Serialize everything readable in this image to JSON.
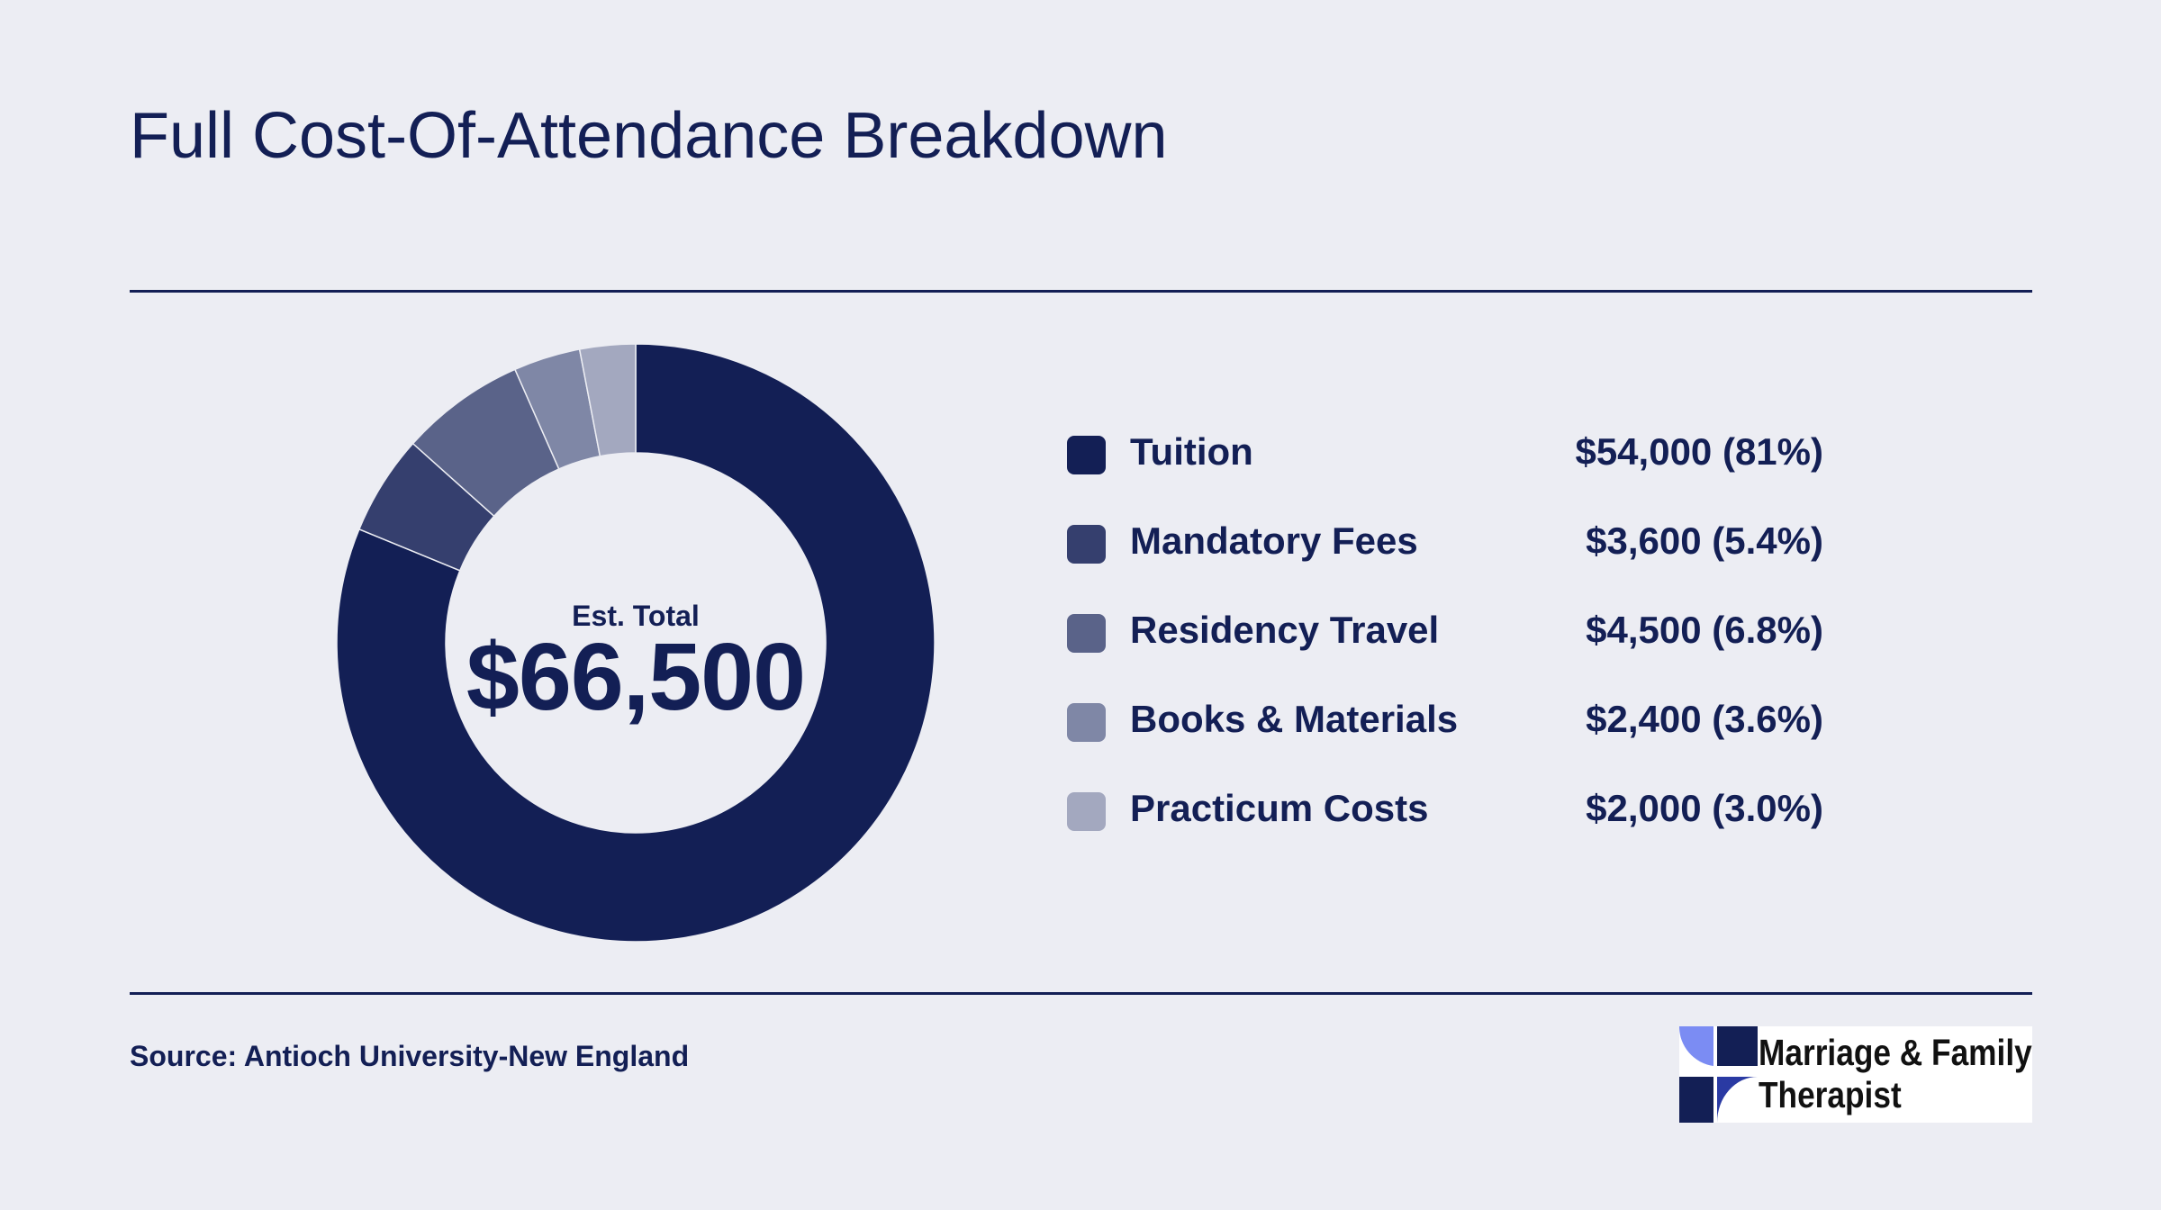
{
  "chart_data": {
    "type": "pie",
    "title": "Full Cost-Of-Attendance Breakdown",
    "center_label": "Est. Total",
    "center_value": "$66,500",
    "start_angle_deg": 0,
    "direction": "clockwise",
    "legend_position": "right",
    "slices": [
      {
        "name": "Tuition",
        "value": 54000,
        "label": "$54,000 (81%)",
        "color": "#131f55"
      },
      {
        "name": "Mandatory Fees",
        "value": 3600,
        "label": "$3,600 (5.4%)",
        "color": "#353f6e"
      },
      {
        "name": "Residency Travel",
        "value": 4500,
        "label": "$4,500 (6.8%)",
        "color": "#5a6389"
      },
      {
        "name": "Books & Materials",
        "value": 2400,
        "label": "$2,400 (3.6%)",
        "color": "#7f87a6"
      },
      {
        "name": "Practicum Costs",
        "value": 2000,
        "label": "$2,000 (3.0%)",
        "color": "#a3a8bf"
      }
    ]
  },
  "footer": {
    "source": "Source: Antioch University-New England"
  },
  "logo": {
    "line1": "Marriage & Family",
    "line2": "Therapist",
    "colors": [
      "#7b8cf3",
      "#131f55",
      "#2a3aa3"
    ]
  }
}
